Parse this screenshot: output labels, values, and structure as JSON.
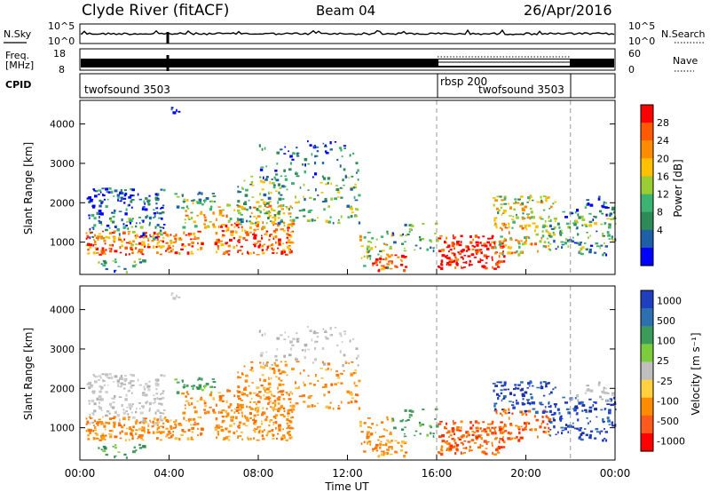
{
  "header": {
    "station": "Clyde River (fitACF)",
    "beam": "Beam 04",
    "date": "26/Apr/2016"
  },
  "top_panels": {
    "nsky_label": "N.Sky",
    "nsky_ticks": [
      "10^5",
      "10^0"
    ],
    "nsearch_label": "N.Search",
    "freq_label_line1": "Freq.",
    "freq_label_line2": "[MHz]",
    "freq_ticks": [
      "18",
      "8"
    ],
    "nave_label": "Nave",
    "nave_ticks": [
      "60",
      "0"
    ],
    "cpid_label": "CPID",
    "cpid_segments": [
      {
        "name": "twofsound 3503",
        "start_hour": 0,
        "end_hour": 16
      },
      {
        "name": "rbsp 200",
        "start_hour": 16,
        "end_hour": 22
      },
      {
        "name": "twofsound 3503",
        "start_hour": 16,
        "end_hour": 22
      }
    ]
  },
  "chart_data": [
    {
      "type": "heatmap",
      "title": "Power",
      "xlabel": "Time UT",
      "ylabel": "Slant Range [km]",
      "x_ticks": [
        "00:00",
        "04:00",
        "08:00",
        "12:00",
        "16:00",
        "20:00",
        "00:00"
      ],
      "y_ticks": [
        1000,
        2000,
        3000,
        4000
      ],
      "xlim_hours": [
        0,
        24
      ],
      "ylim_km": [
        180,
        4600
      ],
      "colorbar_label": "Power [dB]",
      "colorbar_ticks": [
        "28",
        "24",
        "20",
        "16",
        "12",
        "8",
        "4"
      ],
      "colorbar_colors": [
        "#ff0000",
        "#ff5a00",
        "#ff8c00",
        "#ffc000",
        "#9acd32",
        "#3cb371",
        "#2e8b57",
        "#1f5fa8",
        "#0000ff"
      ]
    },
    {
      "type": "heatmap",
      "title": "Velocity",
      "xlabel": "Time UT",
      "ylabel": "Slant Range [km]",
      "x_ticks": [
        "00:00",
        "04:00",
        "08:00",
        "12:00",
        "16:00",
        "20:00",
        "00:00"
      ],
      "y_ticks": [
        1000,
        2000,
        3000,
        4000
      ],
      "xlim_hours": [
        0,
        24
      ],
      "ylim_km": [
        180,
        4600
      ],
      "colorbar_label": "Velocity [m s⁻¹]",
      "colorbar_ticks": [
        "1000",
        "500",
        "100",
        "25",
        "-25",
        "-100",
        "-500",
        "-1000"
      ],
      "colorbar_colors": [
        "#1f3fbf",
        "#2e6fb0",
        "#3c9a5a",
        "#7ccd3c",
        "#bfbfbf",
        "#ffd040",
        "#ff8c00",
        "#ff5a1e",
        "#ff0000"
      ]
    }
  ],
  "x_axis_title": "Time UT"
}
